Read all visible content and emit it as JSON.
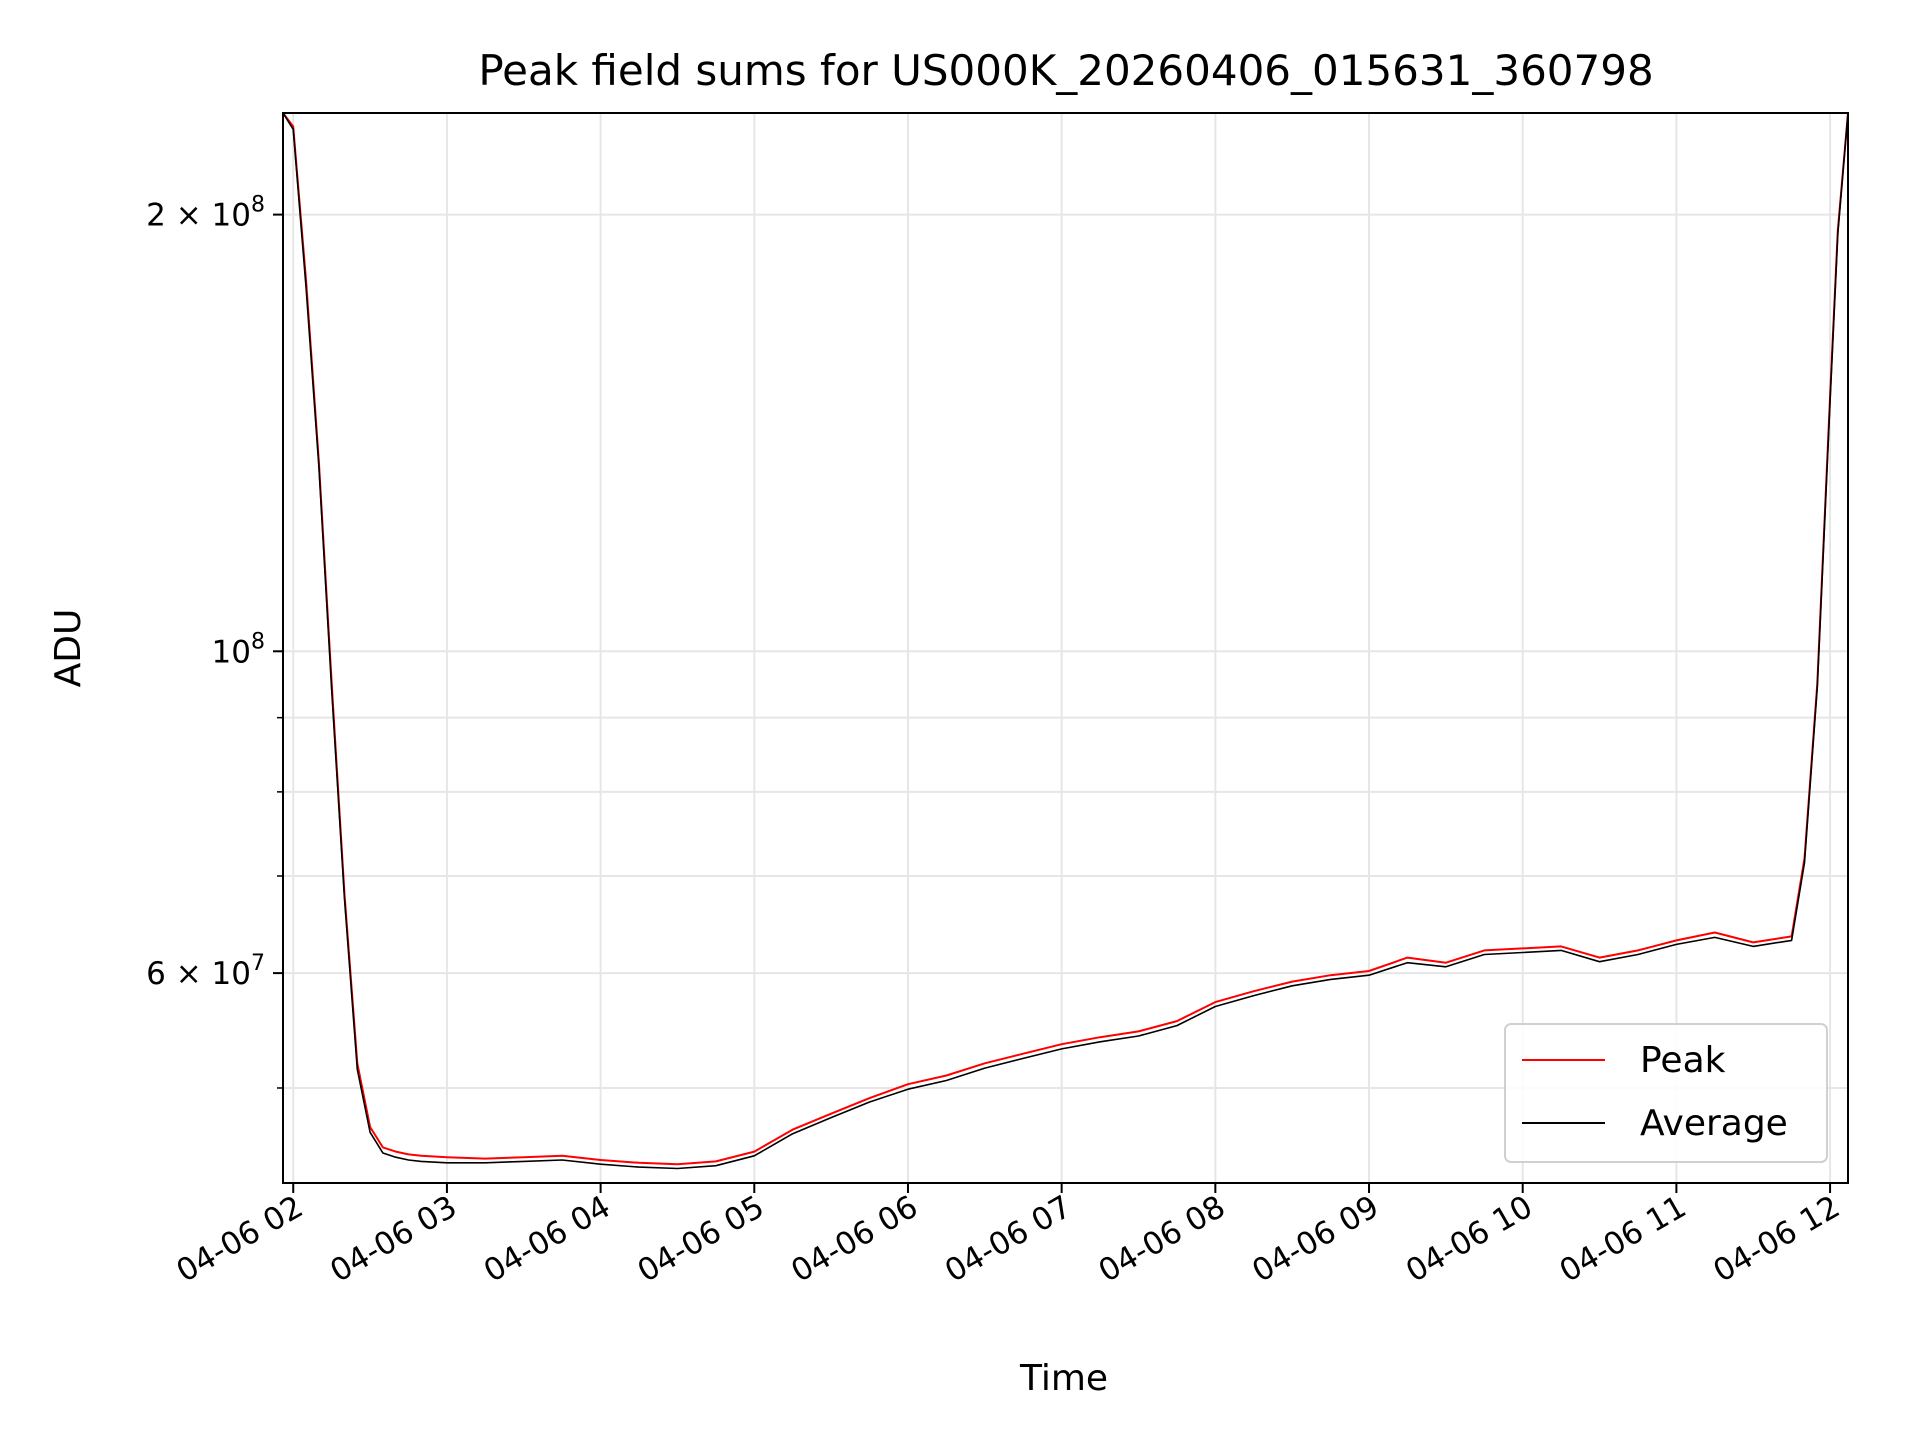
{
  "chart_data": {
    "type": "line",
    "title": "Peak field sums for US000K_20260406_015631_360798",
    "xlabel": "Time",
    "ylabel": "ADU",
    "y_scale": "log",
    "grid": true,
    "legend_position": "lower-right",
    "xlim": [
      "04-06 01:56",
      "04-06 12:07"
    ],
    "ylim": [
      43000000,
      235000000
    ],
    "x_ticks": [
      "04-06 02",
      "04-06 03",
      "04-06 04",
      "04-06 05",
      "04-06 06",
      "04-06 07",
      "04-06 08",
      "04-06 09",
      "04-06 10",
      "04-06 11",
      "04-06 12"
    ],
    "y_tick_labels": [
      {
        "value": 200000000,
        "label": "2 × 10^8"
      },
      {
        "value": 100000000,
        "label": "10^8"
      },
      {
        "value": 60000000,
        "label": "6 × 10^7"
      }
    ],
    "y_minor_ticks": [
      50000000,
      70000000,
      80000000,
      90000000
    ],
    "colors": {
      "peak": "#ff0000",
      "average": "#000000"
    },
    "series": [
      {
        "name": "Peak",
        "color": "#ff0000",
        "x": [
          "04-06 01:56",
          "04-06 02:00",
          "04-06 02:05",
          "04-06 02:10",
          "04-06 02:15",
          "04-06 02:20",
          "04-06 02:25",
          "04-06 02:30",
          "04-06 02:35",
          "04-06 02:40",
          "04-06 02:45",
          "04-06 02:50",
          "04-06 03:00",
          "04-06 03:15",
          "04-06 03:30",
          "04-06 03:45",
          "04-06 04:00",
          "04-06 04:15",
          "04-06 04:30",
          "04-06 04:45",
          "04-06 05:00",
          "04-06 05:15",
          "04-06 05:30",
          "04-06 05:45",
          "04-06 06:00",
          "04-06 06:15",
          "04-06 06:30",
          "04-06 06:45",
          "04-06 07:00",
          "04-06 07:15",
          "04-06 07:30",
          "04-06 07:45",
          "04-06 08:00",
          "04-06 08:15",
          "04-06 08:30",
          "04-06 08:45",
          "04-06 09:00",
          "04-06 09:15",
          "04-06 09:30",
          "04-06 09:45",
          "04-06 10:00",
          "04-06 10:15",
          "04-06 10:30",
          "04-06 10:45",
          "04-06 11:00",
          "04-06 11:15",
          "04-06 11:30",
          "04-06 11:45",
          "04-06 11:50",
          "04-06 11:55",
          "04-06 12:00",
          "04-06 12:03",
          "04-06 12:07"
        ],
        "y": [
          235000000,
          230000000,
          180000000,
          135000000,
          95000000,
          68000000,
          52000000,
          47000000,
          45500000,
          45200000,
          45000000,
          44900000,
          44800000,
          44700000,
          44800000,
          44900000,
          44600000,
          44400000,
          44300000,
          44500000,
          45200000,
          46800000,
          48000000,
          49200000,
          50300000,
          51000000,
          52000000,
          52800000,
          53600000,
          54200000,
          54700000,
          55600000,
          57300000,
          58300000,
          59200000,
          59800000,
          60200000,
          61500000,
          61000000,
          62200000,
          62400000,
          62600000,
          61500000,
          62200000,
          63200000,
          64000000,
          63000000,
          63600000,
          72000000,
          95000000,
          150000000,
          195000000,
          235000000
        ]
      },
      {
        "name": "Average",
        "color": "#000000",
        "x": [
          "04-06 01:56",
          "04-06 02:00",
          "04-06 02:05",
          "04-06 02:10",
          "04-06 02:15",
          "04-06 02:20",
          "04-06 02:25",
          "04-06 02:30",
          "04-06 02:35",
          "04-06 02:40",
          "04-06 02:45",
          "04-06 02:50",
          "04-06 03:00",
          "04-06 03:15",
          "04-06 03:30",
          "04-06 03:45",
          "04-06 04:00",
          "04-06 04:15",
          "04-06 04:30",
          "04-06 04:45",
          "04-06 05:00",
          "04-06 05:15",
          "04-06 05:30",
          "04-06 05:45",
          "04-06 06:00",
          "04-06 06:15",
          "04-06 06:30",
          "04-06 06:45",
          "04-06 07:00",
          "04-06 07:15",
          "04-06 07:30",
          "04-06 07:45",
          "04-06 08:00",
          "04-06 08:15",
          "04-06 08:30",
          "04-06 08:45",
          "04-06 09:00",
          "04-06 09:15",
          "04-06 09:30",
          "04-06 09:45",
          "04-06 10:00",
          "04-06 10:15",
          "04-06 10:30",
          "04-06 10:45",
          "04-06 11:00",
          "04-06 11:15",
          "04-06 11:30",
          "04-06 11:45",
          "04-06 11:50",
          "04-06 11:55",
          "04-06 12:00",
          "04-06 12:03",
          "04-06 12:07"
        ],
        "y": [
          235000000,
          229000000,
          178000000,
          134000000,
          94000000,
          67500000,
          51500000,
          46600000,
          45100000,
          44800000,
          44600000,
          44500000,
          44400000,
          44400000,
          44500000,
          44600000,
          44300000,
          44100000,
          44000000,
          44200000,
          44900000,
          46500000,
          47700000,
          48900000,
          49900000,
          50600000,
          51600000,
          52400000,
          53200000,
          53800000,
          54300000,
          55200000,
          56900000,
          57900000,
          58800000,
          59400000,
          59800000,
          61000000,
          60600000,
          61800000,
          62000000,
          62200000,
          61100000,
          61800000,
          62800000,
          63500000,
          62600000,
          63200000,
          71500000,
          94500000,
          149000000,
          194000000,
          235000000
        ]
      }
    ]
  }
}
